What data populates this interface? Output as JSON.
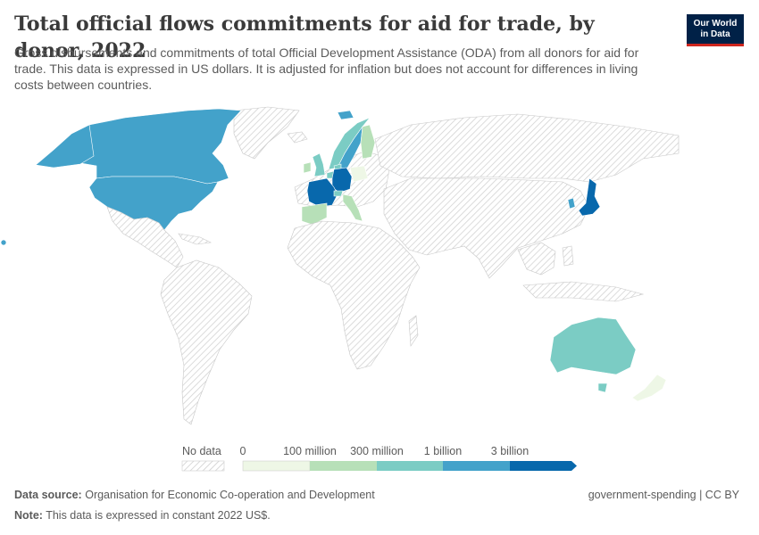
{
  "header": {
    "title": "Total official flows commitments for aid for trade, by donor, 2022",
    "subtitle": "Gross disbursements and commitments of total Official Development Assistance (ODA) from all donors for aid for trade. This data is expressed in US dollars. It is adjusted for inflation but does not account for differences in living costs between countries.",
    "logo_line1": "Our World",
    "logo_line2": "in Data"
  },
  "colors": {
    "no_data_hatch": "#cfcfcf",
    "bin_0_100m": "#eef7e6",
    "bin_100m_300m": "#b7e0b8",
    "bin_300m_1b": "#7bccc4",
    "bin_1b_3b": "#43a2ca",
    "bin_3b_plus": "#0868ac"
  },
  "legend": {
    "no_data_label": "No data",
    "ticks": [
      "0",
      "100 million",
      "300 million",
      "1 billion",
      "3 billion"
    ]
  },
  "map_data": {
    "year": 2022,
    "unit": "US$",
    "donors": [
      {
        "country": "United States",
        "bin": "1 billion - 3 billion"
      },
      {
        "country": "Canada",
        "bin": "1 billion - 3 billion"
      },
      {
        "country": "Japan",
        "bin": "3 billion+"
      },
      {
        "country": "France",
        "bin": "3 billion+"
      },
      {
        "country": "Germany",
        "bin": "3 billion+"
      },
      {
        "country": "United Kingdom",
        "bin": "300 million - 1 billion"
      },
      {
        "country": "Australia",
        "bin": "300 million - 1 billion"
      },
      {
        "country": "Spain",
        "bin": "100 million - 300 million"
      },
      {
        "country": "Italy",
        "bin": "100 million - 300 million"
      },
      {
        "country": "Norway",
        "bin": "300 million - 1 billion"
      },
      {
        "country": "Sweden",
        "bin": "1 billion - 3 billion"
      },
      {
        "country": "Finland",
        "bin": "100 million - 300 million"
      },
      {
        "country": "Netherlands",
        "bin": "300 million - 1 billion"
      },
      {
        "country": "Switzerland",
        "bin": "300 million - 1 billion"
      },
      {
        "country": "Denmark",
        "bin": "300 million - 1 billion"
      },
      {
        "country": "South Korea",
        "bin": "1 billion - 3 billion"
      },
      {
        "country": "New Zealand",
        "bin": "0 - 100 million"
      },
      {
        "country": "Poland",
        "bin": "0 - 100 million"
      }
    ]
  },
  "footer": {
    "source_label": "Data source:",
    "source_text": "Organisation for Economic Co-operation and Development",
    "note_label": "Note:",
    "note_text": "This data is expressed in constant 2022 US$.",
    "license": "government-spending | CC BY"
  }
}
